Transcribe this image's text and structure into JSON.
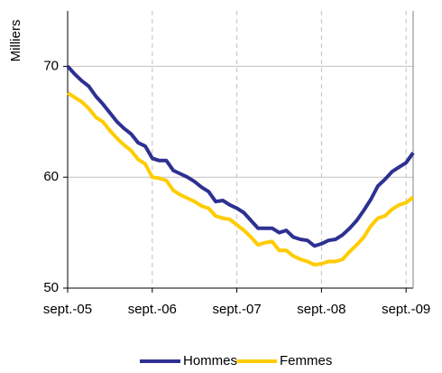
{
  "chart_data": {
    "type": "line",
    "y_label": "Milliers",
    "categories": [
      "sept.-05",
      null,
      null,
      null,
      null,
      null,
      null,
      null,
      null,
      null,
      null,
      null,
      "sept.-06",
      null,
      null,
      null,
      null,
      null,
      null,
      null,
      null,
      null,
      null,
      null,
      "sept.-07",
      null,
      null,
      null,
      null,
      null,
      null,
      null,
      null,
      null,
      null,
      null,
      "sept.-08",
      null,
      null,
      null,
      null,
      null,
      null,
      null,
      null,
      null,
      null,
      null,
      "sept.-09",
      null
    ],
    "series": [
      {
        "name": "Hommes",
        "color": "#2e3192",
        "values": [
          70.0,
          69.3,
          68.7,
          68.2,
          67.3,
          66.6,
          65.8,
          65.0,
          64.4,
          63.9,
          63.1,
          62.8,
          61.7,
          61.5,
          61.5,
          60.6,
          60.3,
          60.0,
          59.6,
          59.1,
          58.7,
          57.8,
          57.9,
          57.5,
          57.2,
          56.8,
          56.1,
          55.4,
          55.4,
          55.4,
          55.0,
          55.2,
          54.6,
          54.4,
          54.3,
          53.8,
          54.0,
          54.3,
          54.4,
          54.8,
          55.4,
          56.1,
          57.0,
          58.0,
          59.2,
          59.8,
          60.5,
          60.9,
          61.3,
          62.2
        ]
      },
      {
        "name": "Femmes",
        "color": "#ffcc00",
        "values": [
          67.6,
          67.2,
          66.8,
          66.2,
          65.4,
          65.0,
          64.2,
          63.5,
          62.9,
          62.4,
          61.6,
          61.2,
          60.0,
          59.9,
          59.7,
          58.8,
          58.4,
          58.1,
          57.8,
          57.4,
          57.2,
          56.5,
          56.3,
          56.2,
          55.7,
          55.2,
          54.6,
          53.9,
          54.1,
          54.2,
          53.4,
          53.4,
          52.9,
          52.6,
          52.4,
          52.1,
          52.2,
          52.4,
          52.4,
          52.6,
          53.3,
          53.9,
          54.6,
          55.6,
          56.3,
          56.5,
          57.1,
          57.5,
          57.7,
          58.2
        ]
      }
    ],
    "ylim": [
      50,
      75
    ],
    "yticks": [
      50,
      60,
      70
    ],
    "grid": true,
    "legend": "bottom"
  }
}
